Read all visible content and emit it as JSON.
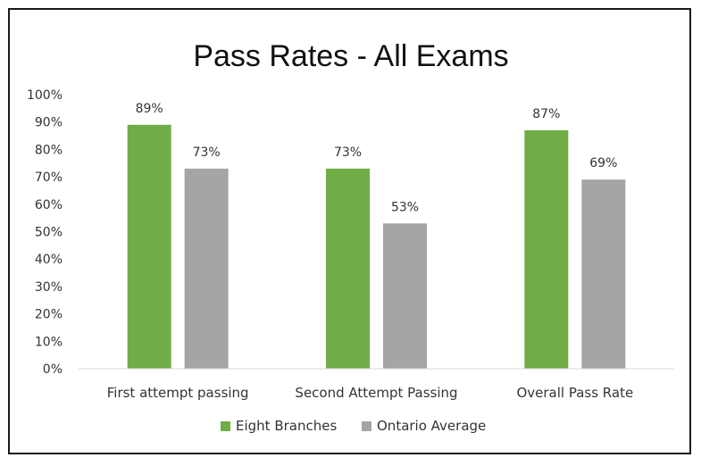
{
  "chart_data": {
    "type": "bar",
    "title": "Pass Rates - All Exams",
    "categories": [
      "First attempt passing",
      "Second Attempt Passing",
      "Overall Pass Rate"
    ],
    "series": [
      {
        "name": "Eight Branches",
        "values": [
          89,
          73,
          87
        ],
        "labels": [
          "89%",
          "73%",
          "87%"
        ],
        "color": "#70ad47"
      },
      {
        "name": "Ontario Average",
        "values": [
          73,
          53,
          69
        ],
        "labels": [
          "73%",
          "53%",
          "69%"
        ],
        "color": "#a5a5a5"
      }
    ],
    "ylim": [
      0,
      100
    ],
    "yticks": [
      "0%",
      "10%",
      "20%",
      "30%",
      "40%",
      "50%",
      "60%",
      "70%",
      "80%",
      "90%",
      "100%"
    ],
    "xlabel": "",
    "ylabel": "",
    "grid": false,
    "legend": "bottom"
  }
}
